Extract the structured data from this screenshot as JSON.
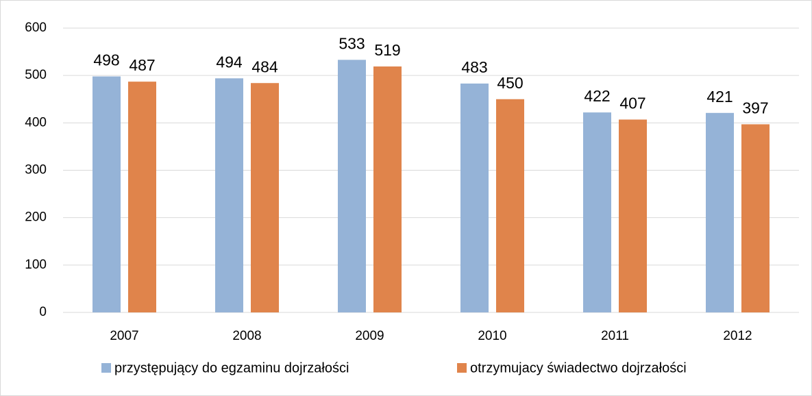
{
  "chart_data": {
    "type": "bar",
    "categories": [
      "2007",
      "2008",
      "2009",
      "2010",
      "2011",
      "2012"
    ],
    "series": [
      {
        "name": "przystępujący do egzaminu dojrzałości",
        "color": "#95b3d7",
        "values": [
          498,
          494,
          533,
          483,
          422,
          421
        ]
      },
      {
        "name": "otrzymujacy świadectwo dojrzałości",
        "color": "#e0844b",
        "values": [
          487,
          484,
          519,
          450,
          407,
          397
        ]
      }
    ],
    "ylim": [
      0,
      600
    ],
    "yticks": [
      0,
      100,
      200,
      300,
      400,
      500,
      600
    ],
    "grid": true,
    "legend": "bottom"
  }
}
